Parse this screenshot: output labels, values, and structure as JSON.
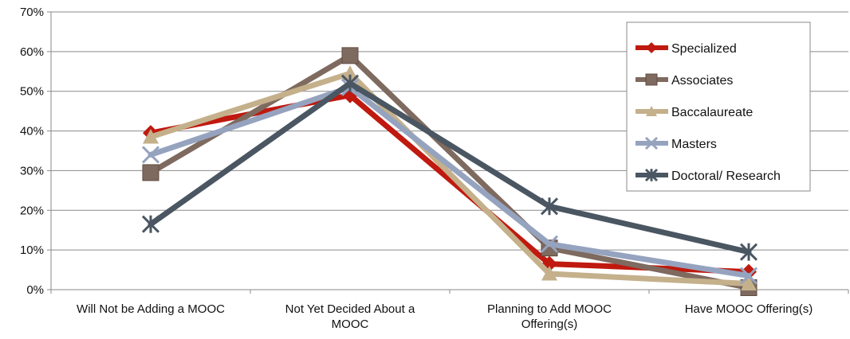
{
  "chart_data": {
    "type": "line",
    "categories": [
      [
        "Will Not be Adding a MOOC"
      ],
      [
        "Not Yet Decided About a",
        "MOOC"
      ],
      [
        "Planning to Add MOOC",
        "Offering(s)"
      ],
      [
        "Have MOOC Offering(s)"
      ]
    ],
    "y_ticks": [
      "0%",
      "10%",
      "20%",
      "30%",
      "40%",
      "50%",
      "60%",
      "70%"
    ],
    "ylim": [
      0,
      70
    ],
    "grid": true,
    "legend_position": "right",
    "series": [
      {
        "name": "Specialized",
        "color": "#c0190f",
        "marker": "diamond",
        "values": [
          39.5,
          49,
          6.5,
          4.5
        ]
      },
      {
        "name": "Associates",
        "color": "#7e6a5f",
        "marker": "square",
        "values": [
          29.5,
          59,
          10.5,
          0.5
        ]
      },
      {
        "name": "Baccalaureate",
        "color": "#c4b08b",
        "marker": "triangle",
        "values": [
          38.5,
          54.5,
          4,
          1.5
        ]
      },
      {
        "name": "Masters",
        "color": "#95a3bf",
        "marker": "x",
        "values": [
          34,
          51,
          11.5,
          3.5
        ]
      },
      {
        "name": "Doctoral/ Research",
        "color": "#4a5662",
        "marker": "star",
        "values": [
          16.5,
          52,
          21,
          9.5
        ]
      }
    ]
  }
}
